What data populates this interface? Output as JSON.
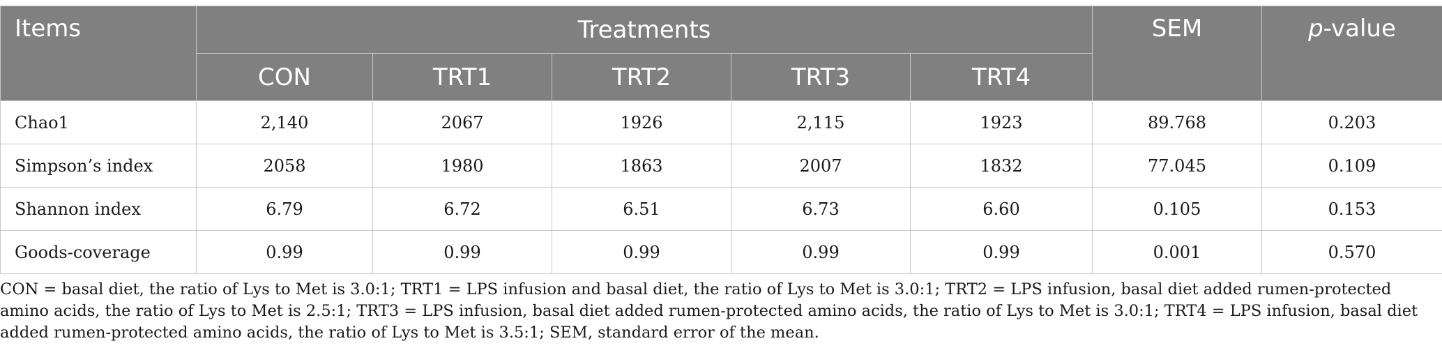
{
  "table": {
    "header": {
      "items": "Items",
      "treatments": "Treatments",
      "sem": "SEM",
      "pvalue_p": "p",
      "pvalue_rest": "-value",
      "treatment_columns": [
        "CON",
        "TRT1",
        "TRT2",
        "TRT3",
        "TRT4"
      ]
    },
    "rows": [
      {
        "label": "Chao1",
        "values": [
          "2,140",
          "2067",
          "1926",
          "2,115",
          "1923"
        ],
        "sem": "89.768",
        "p": "0.203"
      },
      {
        "label": "Simpson’s index",
        "values": [
          "2058",
          "1980",
          "1863",
          "2007",
          "1832"
        ],
        "sem": "77.045",
        "p": "0.109"
      },
      {
        "label": "Shannon index",
        "values": [
          "6.79",
          "6.72",
          "6.51",
          "6.73",
          "6.60"
        ],
        "sem": "0.105",
        "p": "0.153"
      },
      {
        "label": "Goods-coverage",
        "values": [
          "0.99",
          "0.99",
          "0.99",
          "0.99",
          "0.99"
        ],
        "sem": "0.001",
        "p": "0.570"
      }
    ]
  },
  "footnote": "CON = basal diet, the ratio of Lys to Met is 3.0:1; TRT1 = LPS infusion and basal diet, the ratio of Lys to Met is 3.0:1; TRT2 = LPS infusion, basal diet added rumen-protected amino acids, the ratio of Lys to Met is 2.5:1; TRT3 = LPS infusion, basal diet added rumen-protected amino acids, the ratio of Lys to Met is 3.0:1; TRT4 = LPS infusion, basal diet added rumen-protected amino acids, the ratio of Lys to Met is 3.5:1; SEM, standard error of the mean."
}
